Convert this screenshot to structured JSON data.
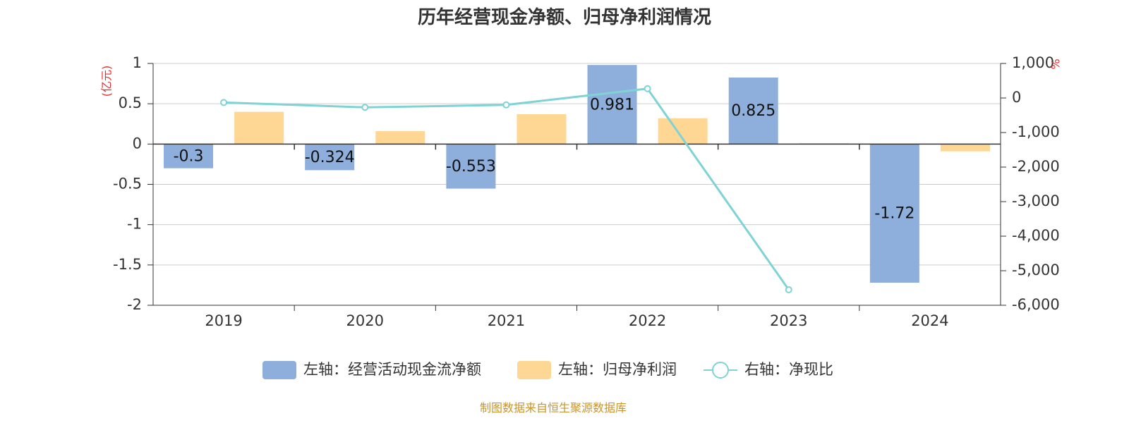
{
  "chart_data": {
    "type": "bar",
    "title": "历年经营现金净额、归母净利润情况",
    "categories": [
      "2019",
      "2020",
      "2021",
      "2022",
      "2023",
      "2024"
    ],
    "series": [
      {
        "name": "左轴：经营活动现金流净额",
        "axis": "left",
        "kind": "bar",
        "color": "#8eaedb",
        "values": [
          -0.3,
          -0.324,
          -0.553,
          0.981,
          0.825,
          -1.72
        ]
      },
      {
        "name": "左轴：归母净利润",
        "axis": "left",
        "kind": "bar",
        "color": "#ffd794",
        "values": [
          0.4,
          0.16,
          0.37,
          0.32,
          0.01,
          -0.09
        ]
      },
      {
        "name": "右轴：净现比",
        "axis": "right",
        "kind": "line",
        "color": "#7fd3d4",
        "values": [
          -130,
          -270,
          -200,
          270,
          -5550,
          null
        ]
      }
    ],
    "data_labels": [
      "-0.3",
      "-0.324",
      "-0.553",
      "0.981",
      "0.825",
      "-1.72"
    ],
    "left_axis": {
      "unit": "(亿元)",
      "ylim": [
        -2,
        1
      ],
      "ticks": [
        "1",
        "0.5",
        "0",
        "-0.5",
        "-1",
        "-1.5",
        "-2"
      ]
    },
    "right_axis": {
      "unit": "%",
      "ylim": [
        -6000,
        1000
      ],
      "ticks": [
        "1,000",
        "0",
        "-1,000",
        "-2,000",
        "-3,000",
        "-4,000",
        "-5,000",
        "-6,000"
      ]
    },
    "grid": true,
    "legend_position": "bottom-center",
    "source": "制图数据来自恒生聚源数据库"
  }
}
